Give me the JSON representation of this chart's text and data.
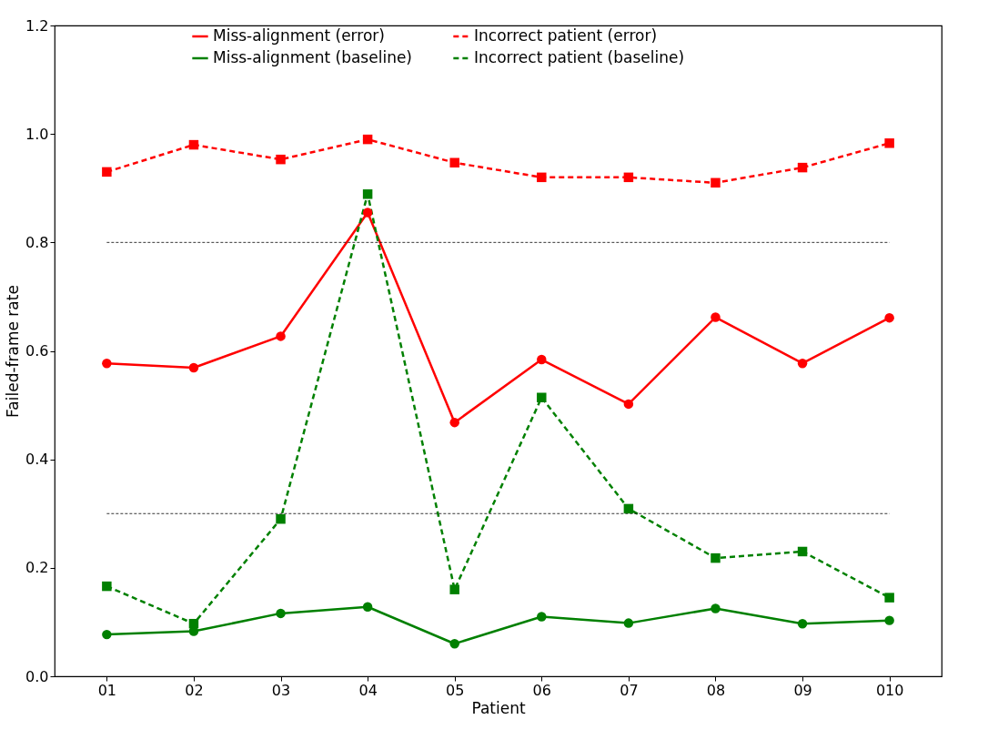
{
  "chart_data": {
    "type": "line",
    "xlabel": "Patient",
    "ylabel": "Failed-frame rate",
    "categories": [
      "01",
      "02",
      "03",
      "04",
      "05",
      "06",
      "07",
      "08",
      "09",
      "010"
    ],
    "series": [
      {
        "name": "Miss-alignment (error)",
        "color": "#ff0000",
        "marker": "circle",
        "line_style": "solid",
        "values": [
          0.577,
          0.569,
          0.627,
          0.855,
          0.468,
          0.584,
          0.502,
          0.662,
          0.577,
          0.661
        ]
      },
      {
        "name": "Miss-alignment (baseline)",
        "color": "#008000",
        "marker": "circle",
        "line_style": "solid",
        "values": [
          0.077,
          0.083,
          0.116,
          0.128,
          0.06,
          0.11,
          0.098,
          0.125,
          0.097,
          0.103
        ]
      },
      {
        "name": "Incorrect patient (error)",
        "color": "#ff0000",
        "marker": "square",
        "line_style": "dashed",
        "values": [
          0.93,
          0.98,
          0.953,
          0.99,
          0.947,
          0.92,
          0.92,
          0.91,
          0.938,
          0.983
        ]
      },
      {
        "name": "Incorrect patient (baseline)",
        "color": "#008000",
        "marker": "square",
        "line_style": "dashed",
        "values": [
          0.166,
          0.097,
          0.29,
          0.889,
          0.16,
          0.514,
          0.309,
          0.218,
          0.23,
          0.145
        ]
      }
    ],
    "ylim": [
      0.0,
      1.2
    ],
    "yticks": [
      {
        "value": 0,
        "label": "0.0"
      },
      {
        "value": 0.2,
        "label": "0.2"
      },
      {
        "value": 0.4,
        "label": "0.4"
      },
      {
        "value": 0.6,
        "label": "0.6"
      },
      {
        "value": 0.8,
        "label": "0.8"
      },
      {
        "value": 1.0,
        "label": "1.0"
      },
      {
        "value": 1.2,
        "label": "1.2"
      }
    ],
    "ref_lines": [
      {
        "axis": "y",
        "value": 0.8,
        "color": "#000000",
        "line_style": "dashed"
      },
      {
        "axis": "y",
        "value": 0.3,
        "color": "#000000",
        "line_style": "dashed"
      }
    ],
    "grid": false,
    "legend": "top"
  }
}
